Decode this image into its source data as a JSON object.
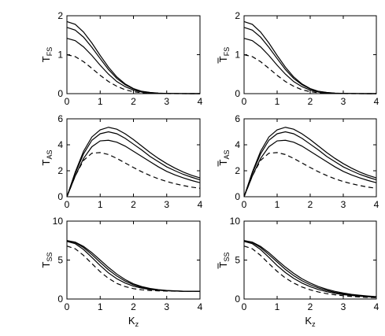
{
  "chart_data": [
    {
      "type": "line",
      "panel": "top-left",
      "ylabel": {
        "main": "T",
        "sub": "FS",
        "bar": false
      },
      "xlim": [
        0,
        4
      ],
      "ylim": [
        0,
        2
      ],
      "xticks": [
        "0",
        "1",
        "2",
        "3",
        "4"
      ],
      "yticks": [
        "0",
        "1",
        "2"
      ],
      "x": [
        0,
        0.25,
        0.5,
        0.75,
        1,
        1.25,
        1.5,
        1.75,
        2,
        2.25,
        2.5,
        2.75,
        3,
        3.25,
        3.5,
        3.75,
        4
      ],
      "series": [
        {
          "style": "solid",
          "values": [
            1.85,
            1.78,
            1.58,
            1.3,
            0.98,
            0.68,
            0.43,
            0.25,
            0.13,
            0.06,
            0.03,
            0.012,
            0.005,
            0.002,
            0.001,
            0,
            0
          ]
        },
        {
          "style": "solid",
          "values": [
            1.7,
            1.63,
            1.45,
            1.19,
            0.9,
            0.62,
            0.39,
            0.23,
            0.12,
            0.055,
            0.025,
            0.01,
            0.004,
            0.002,
            0.001,
            0,
            0
          ]
        },
        {
          "style": "solid",
          "values": [
            1.42,
            1.36,
            1.2,
            0.98,
            0.73,
            0.5,
            0.31,
            0.18,
            0.09,
            0.04,
            0.018,
            0.007,
            0.003,
            0.001,
            0,
            0,
            0
          ]
        },
        {
          "style": "dashed",
          "values": [
            1.0,
            0.95,
            0.82,
            0.65,
            0.47,
            0.31,
            0.19,
            0.1,
            0.05,
            0.022,
            0.009,
            0.003,
            0.001,
            0,
            0,
            0,
            0
          ]
        }
      ]
    },
    {
      "type": "line",
      "panel": "top-right",
      "ylabel": {
        "main": "T",
        "sub": "FS",
        "bar": true
      },
      "xlim": [
        0,
        4
      ],
      "ylim": [
        0,
        2
      ],
      "xticks": [
        "0",
        "1",
        "2",
        "3",
        "4"
      ],
      "yticks": [
        "0",
        "1",
        "2"
      ],
      "x": [
        0,
        0.25,
        0.5,
        0.75,
        1,
        1.25,
        1.5,
        1.75,
        2,
        2.25,
        2.5,
        2.75,
        3,
        3.25,
        3.5,
        3.75,
        4
      ],
      "series": [
        {
          "style": "solid",
          "values": [
            1.85,
            1.78,
            1.58,
            1.3,
            0.98,
            0.68,
            0.43,
            0.25,
            0.13,
            0.06,
            0.03,
            0.012,
            0.005,
            0.002,
            0.001,
            0,
            0
          ]
        },
        {
          "style": "solid",
          "values": [
            1.7,
            1.63,
            1.45,
            1.19,
            0.9,
            0.62,
            0.39,
            0.23,
            0.12,
            0.055,
            0.025,
            0.01,
            0.004,
            0.002,
            0.001,
            0,
            0
          ]
        },
        {
          "style": "solid",
          "values": [
            1.42,
            1.36,
            1.2,
            0.98,
            0.73,
            0.5,
            0.31,
            0.18,
            0.09,
            0.04,
            0.018,
            0.007,
            0.003,
            0.001,
            0,
            0,
            0
          ]
        },
        {
          "style": "dashed",
          "values": [
            1.0,
            0.95,
            0.82,
            0.65,
            0.47,
            0.31,
            0.19,
            0.1,
            0.05,
            0.022,
            0.009,
            0.003,
            0.001,
            0,
            0,
            0,
            0
          ]
        }
      ]
    },
    {
      "type": "line",
      "panel": "middle-left",
      "ylabel": {
        "main": "T",
        "sub": "AS",
        "bar": false
      },
      "xlim": [
        0,
        4
      ],
      "ylim": [
        0,
        6
      ],
      "xticks": [
        "0",
        "1",
        "2",
        "3",
        "4"
      ],
      "yticks": [
        "0",
        "2",
        "4",
        "6"
      ],
      "x": [
        0,
        0.25,
        0.5,
        0.75,
        1,
        1.25,
        1.5,
        1.75,
        2,
        2.25,
        2.5,
        2.75,
        3,
        3.25,
        3.5,
        3.75,
        4
      ],
      "series": [
        {
          "style": "solid",
          "values": [
            0,
            1.9,
            3.5,
            4.6,
            5.15,
            5.35,
            5.2,
            4.85,
            4.4,
            3.9,
            3.4,
            2.95,
            2.55,
            2.2,
            1.9,
            1.65,
            1.45
          ]
        },
        {
          "style": "solid",
          "values": [
            0,
            1.8,
            3.3,
            4.35,
            4.85,
            5.0,
            4.85,
            4.5,
            4.05,
            3.6,
            3.1,
            2.7,
            2.3,
            2.0,
            1.72,
            1.5,
            1.3
          ]
        },
        {
          "style": "solid",
          "values": [
            0,
            1.6,
            2.95,
            3.85,
            4.3,
            4.35,
            4.2,
            3.9,
            3.5,
            3.1,
            2.7,
            2.3,
            1.95,
            1.68,
            1.45,
            1.25,
            1.08
          ]
        },
        {
          "style": "dashed",
          "values": [
            0,
            1.6,
            2.8,
            3.35,
            3.4,
            3.25,
            2.95,
            2.6,
            2.25,
            1.92,
            1.63,
            1.38,
            1.17,
            1.0,
            0.86,
            0.74,
            0.65
          ]
        }
      ]
    },
    {
      "type": "line",
      "panel": "middle-right",
      "ylabel": {
        "main": "T",
        "sub": "AS",
        "bar": true
      },
      "xlim": [
        0,
        4
      ],
      "ylim": [
        0,
        6
      ],
      "xticks": [
        "0",
        "1",
        "2",
        "3",
        "4"
      ],
      "yticks": [
        "0",
        "2",
        "4",
        "6"
      ],
      "x": [
        0,
        0.25,
        0.5,
        0.75,
        1,
        1.25,
        1.5,
        1.75,
        2,
        2.25,
        2.5,
        2.75,
        3,
        3.25,
        3.5,
        3.75,
        4
      ],
      "series": [
        {
          "style": "solid",
          "values": [
            0,
            1.9,
            3.5,
            4.6,
            5.15,
            5.35,
            5.2,
            4.85,
            4.4,
            3.9,
            3.4,
            2.95,
            2.55,
            2.2,
            1.9,
            1.65,
            1.45
          ]
        },
        {
          "style": "solid",
          "values": [
            0,
            1.8,
            3.3,
            4.35,
            4.85,
            5.0,
            4.85,
            4.5,
            4.05,
            3.6,
            3.1,
            2.7,
            2.3,
            2.0,
            1.72,
            1.5,
            1.3
          ]
        },
        {
          "style": "solid",
          "values": [
            0,
            1.6,
            2.95,
            3.85,
            4.3,
            4.35,
            4.2,
            3.9,
            3.5,
            3.1,
            2.7,
            2.3,
            1.95,
            1.68,
            1.45,
            1.25,
            1.08
          ]
        },
        {
          "style": "dashed",
          "values": [
            0,
            1.6,
            2.8,
            3.35,
            3.4,
            3.25,
            2.95,
            2.6,
            2.25,
            1.92,
            1.63,
            1.38,
            1.17,
            1.0,
            0.86,
            0.74,
            0.65
          ]
        }
      ]
    },
    {
      "type": "line",
      "panel": "bottom-left",
      "ylabel": {
        "main": "T",
        "sub": "SS",
        "bar": false
      },
      "xlabel": {
        "main": "K",
        "sub": "z"
      },
      "xlim": [
        0,
        4
      ],
      "ylim": [
        0,
        10
      ],
      "xticks": [
        "0",
        "1",
        "2",
        "3",
        "4"
      ],
      "yticks": [
        "0",
        "5",
        "10"
      ],
      "x": [
        0,
        0.25,
        0.5,
        0.75,
        1,
        1.25,
        1.5,
        1.75,
        2,
        2.25,
        2.5,
        2.75,
        3,
        3.25,
        3.5,
        3.75,
        4
      ],
      "series": [
        {
          "style": "solid",
          "values": [
            7.5,
            7.3,
            6.75,
            5.95,
            5.0,
            4.05,
            3.2,
            2.5,
            1.95,
            1.6,
            1.35,
            1.2,
            1.1,
            1.05,
            1.0,
            1.0,
            1.0
          ]
        },
        {
          "style": "solid",
          "values": [
            7.5,
            7.25,
            6.6,
            5.7,
            4.7,
            3.75,
            2.95,
            2.3,
            1.82,
            1.5,
            1.3,
            1.16,
            1.08,
            1.03,
            1.0,
            1.0,
            1.0
          ]
        },
        {
          "style": "solid",
          "values": [
            7.4,
            7.1,
            6.35,
            5.35,
            4.3,
            3.35,
            2.6,
            2.05,
            1.65,
            1.4,
            1.22,
            1.12,
            1.06,
            1.02,
            1.0,
            1.0,
            1.0
          ]
        },
        {
          "style": "dashed",
          "values": [
            6.8,
            6.45,
            5.6,
            4.55,
            3.5,
            2.65,
            2.0,
            1.6,
            1.33,
            1.18,
            1.1,
            1.05,
            1.02,
            1.01,
            1.0,
            1.0,
            1.0
          ]
        }
      ]
    },
    {
      "type": "line",
      "panel": "bottom-right",
      "ylabel": {
        "main": "T",
        "sub": "SS",
        "bar": true
      },
      "xlabel": {
        "main": "K",
        "sub": "z"
      },
      "xlim": [
        0,
        4
      ],
      "ylim": [
        0,
        10
      ],
      "xticks": [
        "0",
        "1",
        "2",
        "3",
        "4"
      ],
      "yticks": [
        "0",
        "5",
        "10"
      ],
      "x": [
        0,
        0.25,
        0.5,
        0.75,
        1,
        1.25,
        1.5,
        1.75,
        2,
        2.25,
        2.5,
        2.75,
        3,
        3.25,
        3.5,
        3.75,
        4
      ],
      "series": [
        {
          "style": "solid",
          "values": [
            7.5,
            7.3,
            6.75,
            5.95,
            5.0,
            4.1,
            3.3,
            2.6,
            2.05,
            1.6,
            1.25,
            0.98,
            0.77,
            0.6,
            0.48,
            0.38,
            0.3
          ]
        },
        {
          "style": "solid",
          "values": [
            7.5,
            7.25,
            6.6,
            5.7,
            4.75,
            3.8,
            3.0,
            2.35,
            1.83,
            1.42,
            1.1,
            0.85,
            0.66,
            0.52,
            0.41,
            0.33,
            0.27
          ]
        },
        {
          "style": "solid",
          "values": [
            7.4,
            7.1,
            6.35,
            5.35,
            4.3,
            3.4,
            2.65,
            2.05,
            1.58,
            1.22,
            0.94,
            0.73,
            0.57,
            0.45,
            0.36,
            0.29,
            0.23
          ]
        },
        {
          "style": "dashed",
          "values": [
            6.8,
            6.45,
            5.6,
            4.55,
            3.55,
            2.7,
            2.05,
            1.55,
            1.18,
            0.9,
            0.69,
            0.54,
            0.42,
            0.33,
            0.26,
            0.21,
            0.17
          ]
        }
      ]
    }
  ]
}
